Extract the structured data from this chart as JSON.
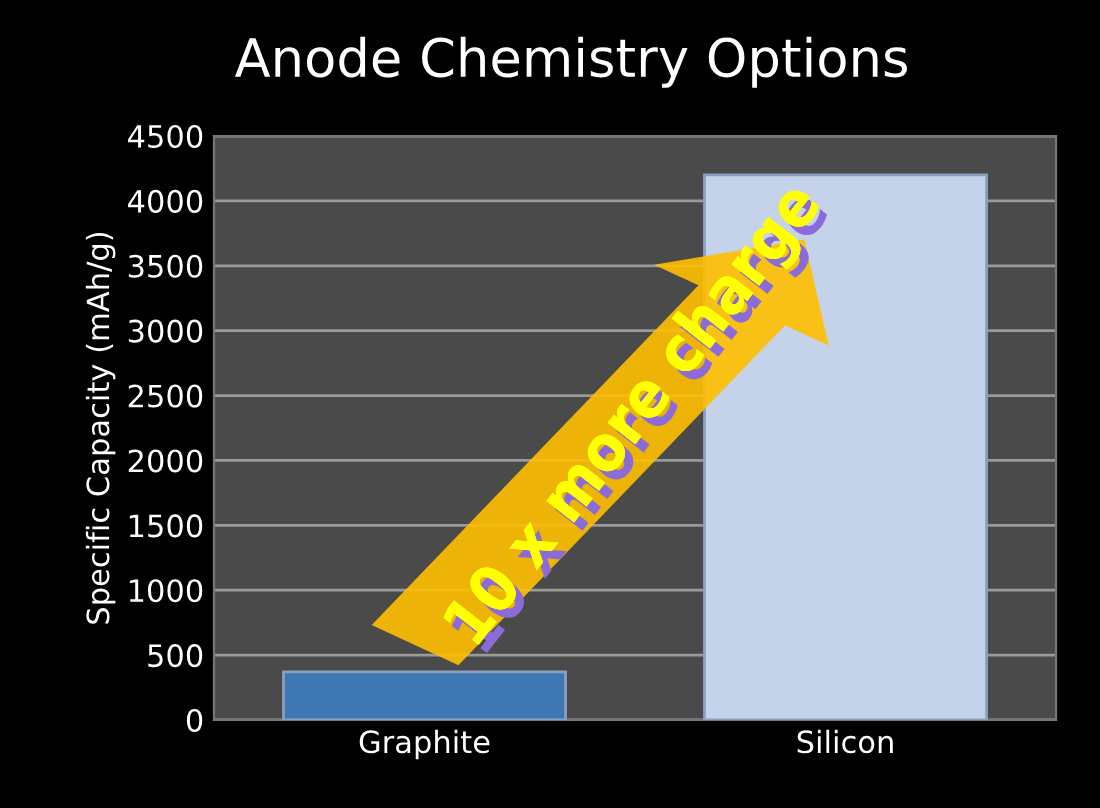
{
  "chart_data": {
    "type": "bar",
    "title": "Anode Chemistry Options",
    "ylabel": "Specific Capacity (mAh/g)",
    "categories": [
      "Graphite",
      "Silicon"
    ],
    "colors": [
      "#3f77b5",
      "#c5d3ea"
    ],
    "values": [
      370,
      4200
    ],
    "ylim": [
      0,
      4500
    ],
    "yticks": [
      0,
      500,
      1000,
      1500,
      2000,
      2500,
      3000,
      3500,
      4000,
      4500
    ],
    "grid": "y",
    "annotations": [
      "10 x more charge"
    ]
  }
}
